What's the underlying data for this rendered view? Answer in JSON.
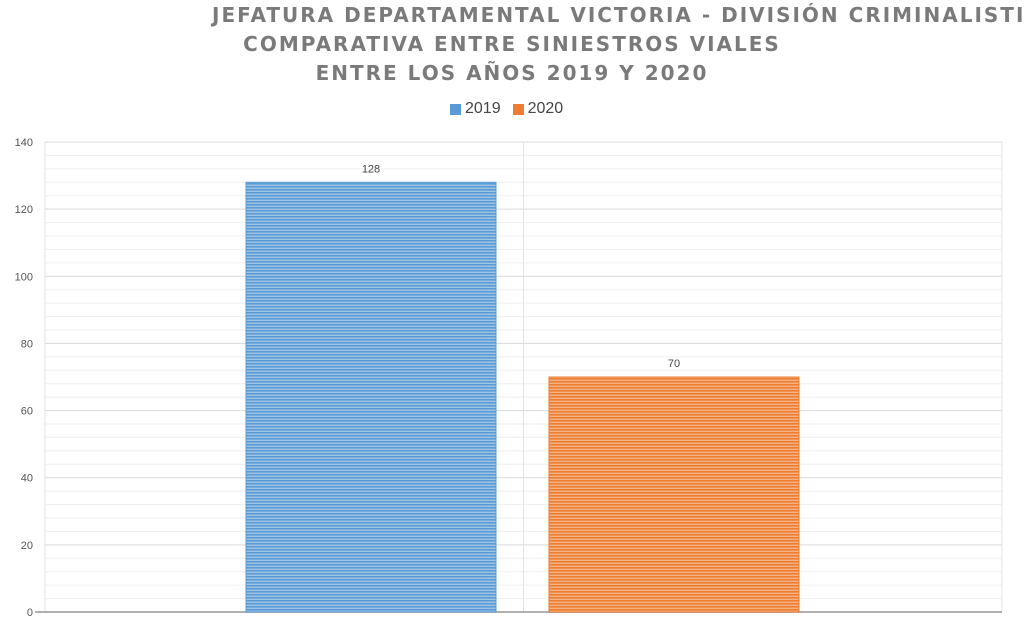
{
  "chart_data": {
    "type": "bar",
    "title_lines": [
      "JEFATURA DEPARTAMENTAL VICTORIA - DIVISIÓN CRIMINALISTICA",
      "COMPARATIVA  ENTRE SINIESTROS VIALES",
      "ENTRE LOS AÑOS 2019 Y 2020"
    ],
    "xlabel": "",
    "ylabel": "",
    "ylim": [
      0,
      140
    ],
    "yticks": [
      "0",
      "20",
      "40",
      "60",
      "80",
      "100",
      "120",
      "140"
    ],
    "grid": true,
    "legend_position": "top",
    "series": [
      {
        "name": "2019",
        "value": 128,
        "label": "128",
        "color": "#5b9bd5"
      },
      {
        "name": "2020",
        "value": 70,
        "label": "70",
        "color": "#ed7d31"
      }
    ]
  }
}
